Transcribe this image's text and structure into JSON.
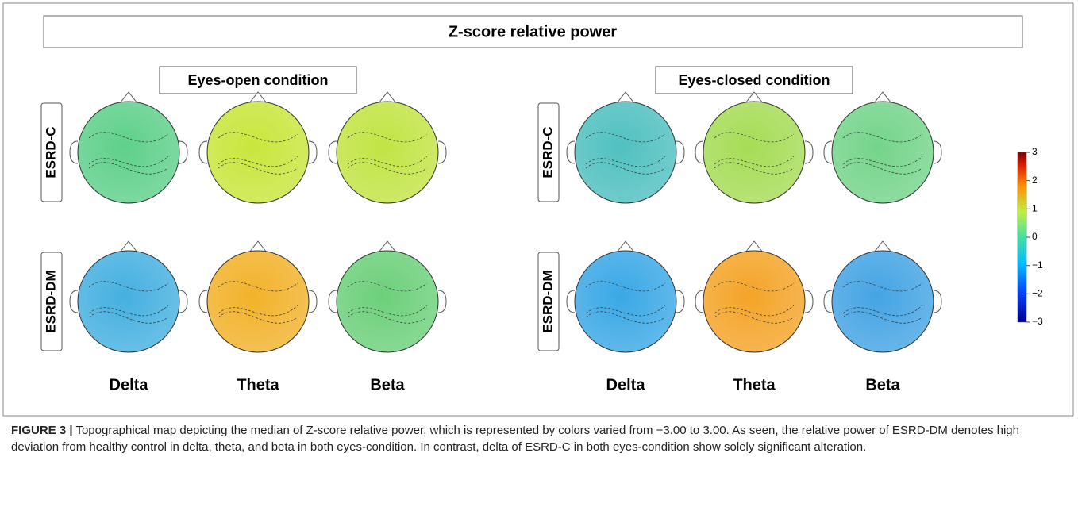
{
  "figure": {
    "title": "Z-score relative power",
    "conditions": [
      {
        "name": "Eyes-open condition",
        "bands": [
          "Delta",
          "Theta",
          "Beta"
        ],
        "maps": [
          [
            "#5ed08a",
            "#c8e63c",
            "#c2e444"
          ],
          [
            "#45b0e0",
            "#f2b22a",
            "#6cd07a"
          ]
        ]
      },
      {
        "name": "Eyes-closed condition",
        "bands": [
          "Delta",
          "Theta",
          "Beta"
        ],
        "maps": [
          [
            "#50c0c0",
            "#a6dc56",
            "#74d48a"
          ],
          [
            "#3aa8e6",
            "#f4a428",
            "#44a4e4"
          ]
        ]
      }
    ],
    "groups": [
      "ESRD-C",
      "ESRD-DM"
    ],
    "colorbar": {
      "lim": [
        -3,
        3
      ],
      "ticks": [
        3,
        2,
        1,
        0,
        {
          "value": -1,
          "label": "−1"
        },
        {
          "value": -2,
          "label": "−2"
        },
        {
          "value": -3,
          "label": "−3"
        }
      ]
    },
    "caption": {
      "label": "FIGURE 3 |",
      "text": "Topographical map depicting the median of Z-score relative power, which is represented by colors varied from −3.00 to 3.00. As seen, the relative power of ESRD-DM denotes high deviation from healthy control in delta, theta, and beta in both eyes-condition. In contrast, delta of ESRD-C in both eyes-condition show solely significant alteration."
    }
  }
}
